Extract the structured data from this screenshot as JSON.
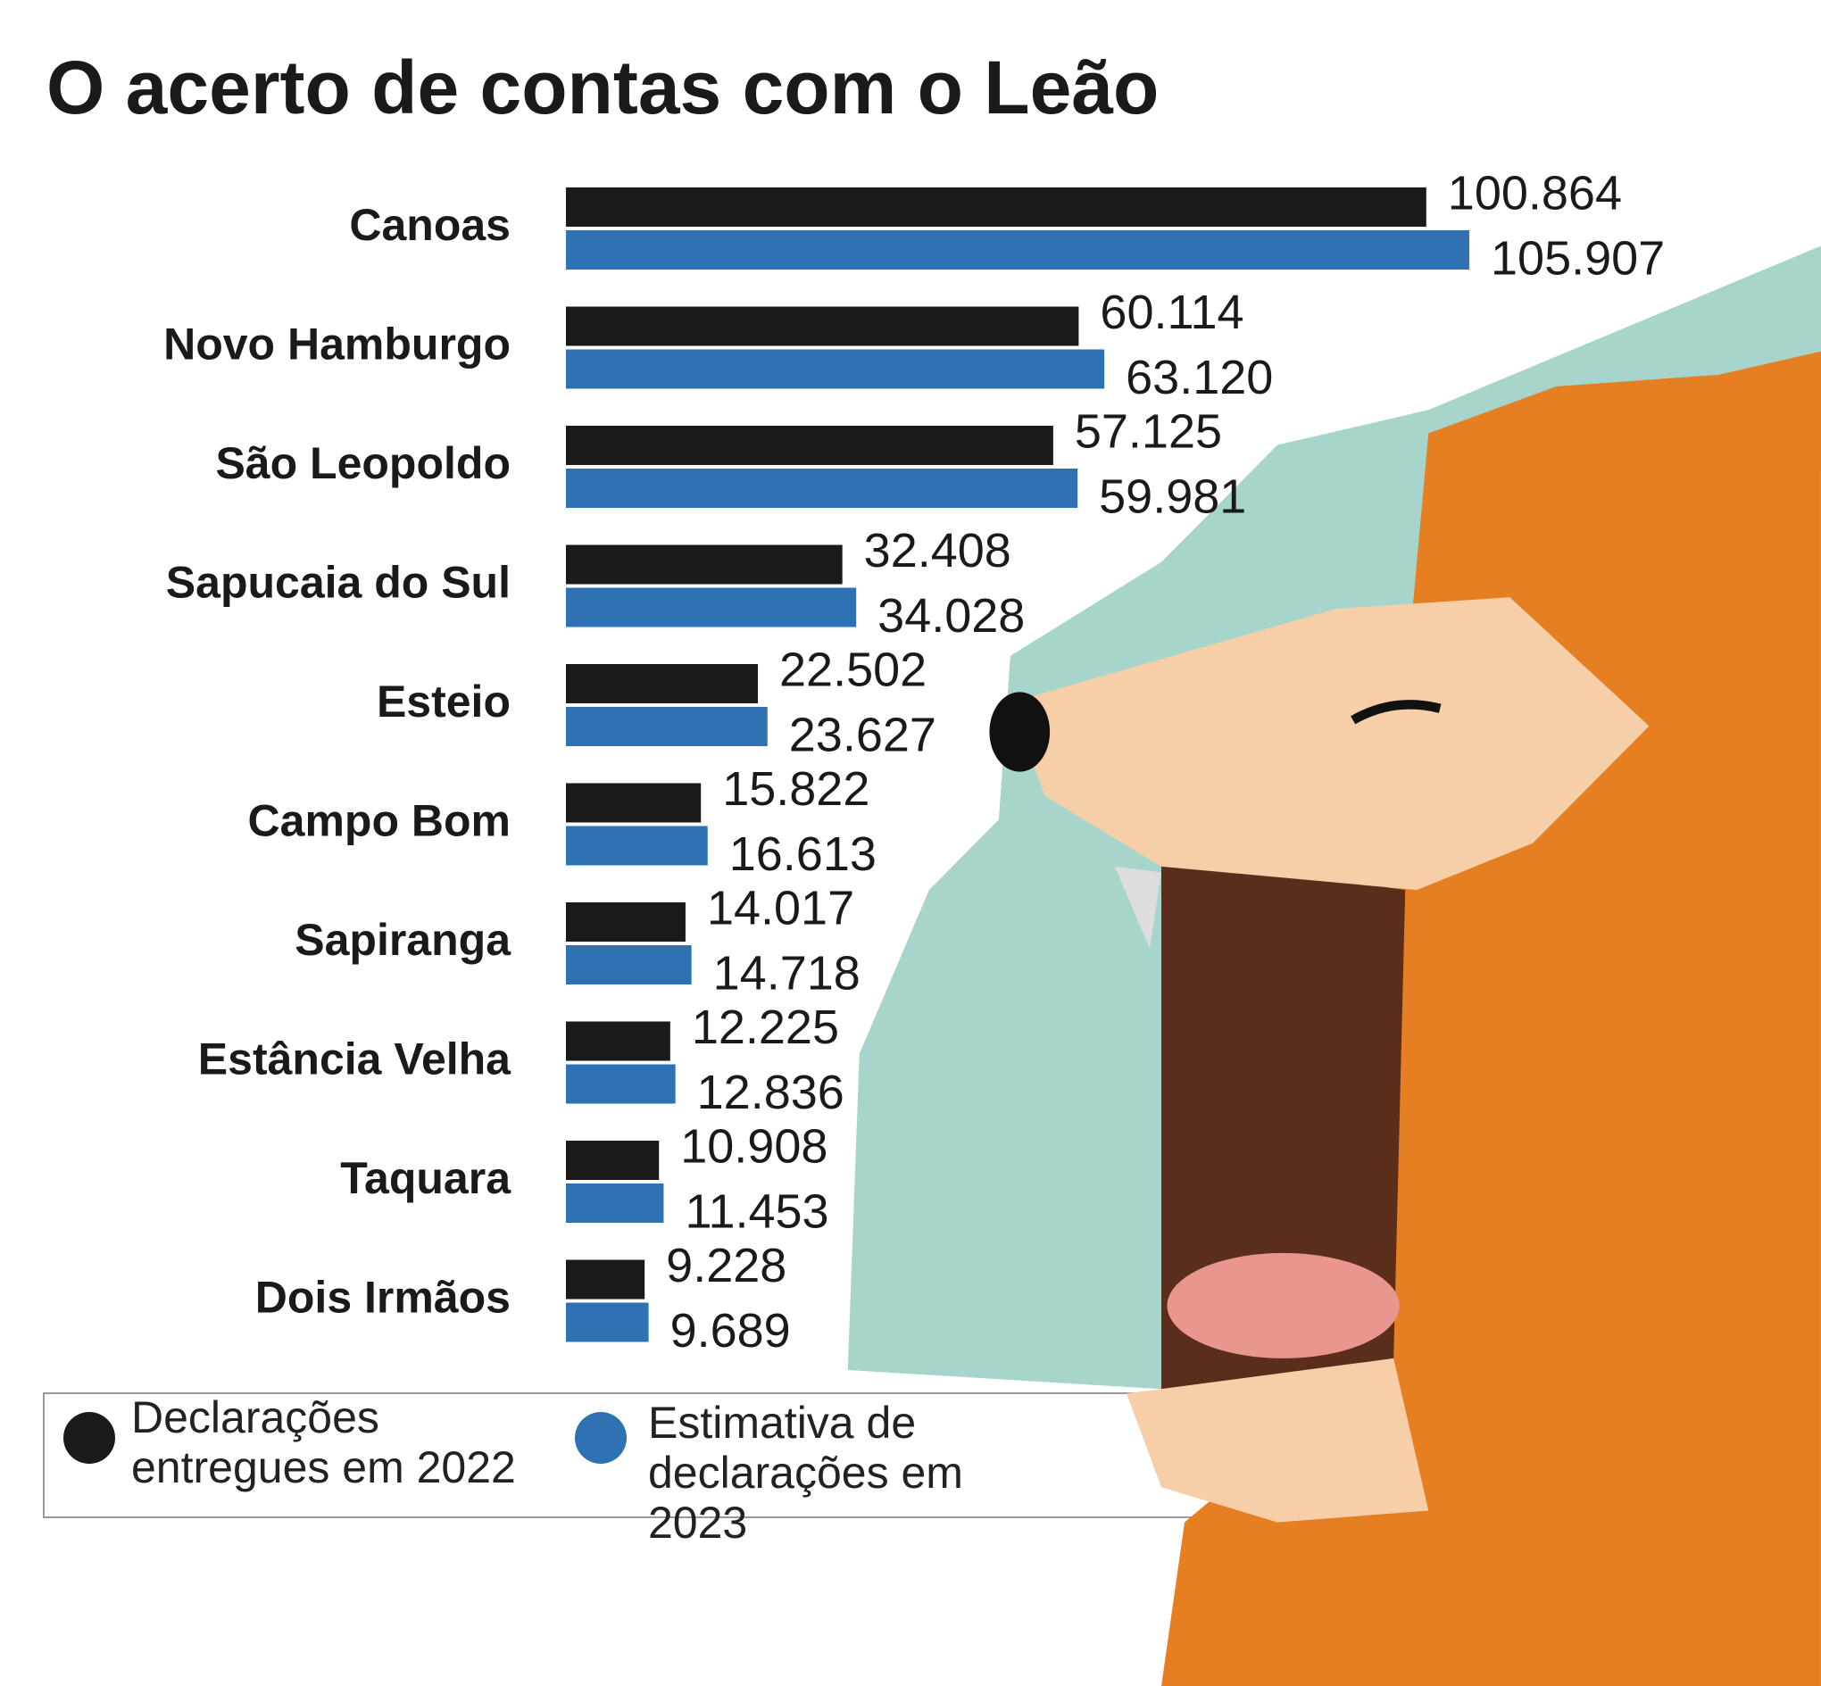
{
  "chart_data": {
    "type": "bar",
    "orientation": "horizontal",
    "title": "O acerto de contas com o Leão",
    "categories": [
      "Canoas",
      "Novo Hamburgo",
      "São Leopoldo",
      "Sapucaia do Sul",
      "Esteio",
      "Campo Bom",
      "Sapiranga",
      "Estância Velha",
      "Taquara",
      "Dois Irmãos"
    ],
    "series": [
      {
        "name": "Declarações entregues em 2022",
        "color": "#1a1a1a",
        "values": [
          100864,
          60114,
          57125,
          32408,
          22502,
          15822,
          14017,
          12225,
          10908,
          9228
        ],
        "value_labels": [
          "100.864",
          "60.114",
          "57.125",
          "32.408",
          "22.502",
          "15.822",
          "14.017",
          "12.225",
          "10.908",
          "9.228"
        ]
      },
      {
        "name": "Estimativa de declarações em 2023",
        "color": "#2e72b3",
        "values": [
          105907,
          63120,
          59981,
          34028,
          23627,
          16613,
          14718,
          12836,
          11453,
          9689
        ],
        "value_labels": [
          "105.907",
          "63.120",
          "59.981",
          "34.028",
          "23.627",
          "16.613",
          "14.718",
          "12.836",
          "11.453",
          "9.689"
        ]
      }
    ]
  }
}
